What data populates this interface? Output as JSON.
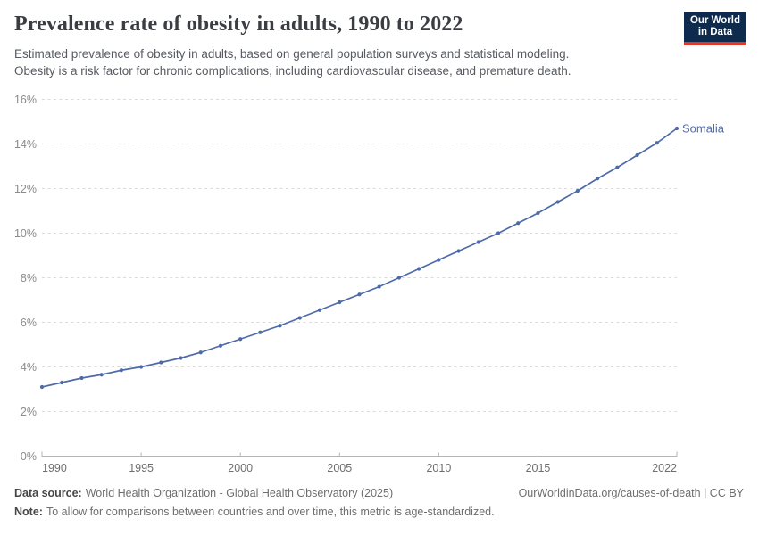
{
  "header": {
    "title": "Prevalence rate of obesity in adults, 1990 to 2022",
    "subtitle_line1": "Estimated prevalence of obesity in adults, based on general population surveys and statistical modeling.",
    "subtitle_line2": "Obesity is a risk factor for chronic complications, including cardiovascular disease, and premature death.",
    "logo": {
      "line1": "Our World",
      "line2": "in Data"
    }
  },
  "chart_data": {
    "type": "line",
    "title": "Prevalence rate of obesity in adults, 1990 to 2022",
    "x": [
      1990,
      1991,
      1992,
      1993,
      1994,
      1995,
      1996,
      1997,
      1998,
      1999,
      2000,
      2001,
      2002,
      2003,
      2004,
      2005,
      2006,
      2007,
      2008,
      2009,
      2010,
      2011,
      2012,
      2013,
      2014,
      2015,
      2016,
      2017,
      2018,
      2019,
      2020,
      2021,
      2022
    ],
    "series": [
      {
        "name": "Somalia",
        "color": "#4e6ba8",
        "values": [
          3.1,
          3.3,
          3.5,
          3.65,
          3.85,
          4.0,
          4.2,
          4.4,
          4.65,
          4.95,
          5.25,
          5.55,
          5.85,
          6.2,
          6.55,
          6.9,
          7.25,
          7.6,
          8.0,
          8.4,
          8.8,
          9.2,
          9.6,
          10.0,
          10.45,
          10.9,
          11.4,
          11.9,
          12.45,
          12.95,
          13.5,
          14.05,
          14.7
        ]
      }
    ],
    "end_label": "Somalia",
    "xlabel": "",
    "ylabel": "",
    "ylim": [
      0,
      16
    ],
    "yticks": [
      0,
      2,
      4,
      6,
      8,
      10,
      12,
      14,
      16
    ],
    "ytick_suffix": "%",
    "xticks": [
      1990,
      1995,
      2000,
      2005,
      2010,
      2015,
      2022
    ],
    "grid": "horizontal-dashed",
    "legend_position": "line-end"
  },
  "footer": {
    "source_label": "Data source:",
    "source_text": "World Health Organization - Global Health Observatory (2025)",
    "right_text": "OurWorldinData.org/causes-of-death | CC BY",
    "note_label": "Note:",
    "note_text": "To allow for comparisons between countries and over time, this metric is age-standardized."
  },
  "colors": {
    "accent_line": "#4e6ba8",
    "logo_bg": "#0e2a4d",
    "logo_bar": "#d93a2b",
    "title_text": "#3a3d42",
    "grid": "#dadada",
    "axis": "#b5b5b5"
  }
}
